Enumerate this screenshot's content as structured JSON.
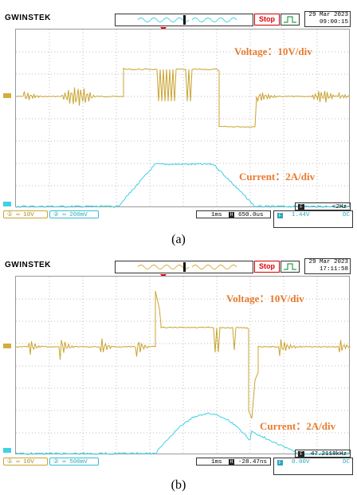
{
  "panels": [
    {
      "id": "a",
      "brand": "GWINSTEK",
      "stop_label": "Stop",
      "date": "29 Mar 2023",
      "time": "09:00:15",
      "voltage_label": "Voltage：10V/div",
      "current_label": "Current：2A/div",
      "ch1_scale": "10V",
      "ch2_scale": "200mV",
      "time_div": "1ms",
      "time_offset": "650.0us",
      "freq": "<2Hz",
      "trigger_level": "1.44V",
      "coupling": "DC",
      "caption": "(a)",
      "colors": {
        "ch1": "#d2ae3a",
        "ch2": "#3fd2e2",
        "label": "#e87b2e",
        "stop": "#e00000"
      }
    },
    {
      "id": "b",
      "brand": "GWINSTEK",
      "stop_label": "Stop",
      "date": "29 Mar 2023",
      "time": "17:11:58",
      "voltage_label": "Voltage：10V/div",
      "current_label": "Current：2A/div",
      "ch1_scale": "10V",
      "ch2_scale": "500mV",
      "time_div": "1ms",
      "time_offset": "-28.47ns",
      "freq": "47.2118kHz",
      "trigger_level": "0.00V",
      "coupling": "DC",
      "caption": "(b)",
      "colors": {
        "ch1": "#d2ae3a",
        "ch2": "#3fd2e2",
        "label": "#e87b2e",
        "stop": "#e00000"
      }
    }
  ]
}
